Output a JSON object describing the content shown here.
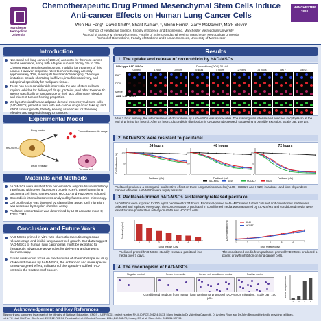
{
  "header": {
    "title_line1": "Chemotherapeutic Drug Primed Mesenchymal Stem Cells Induce",
    "title_line2": "Anti-cancer Effects on Human Lung Cancer Cells",
    "authors": "Wen-Hui Fang¹, David Smith², Shant Kumar¹, ³, Glenn Ferris¹, Garry McDowell¹, Mark Slevin¹",
    "affiliation1": "¹School of Healthcare Science, Faculty of Science and Engineering, Manchester Metropolitan University",
    "affiliation2": "²School of Science & The Environment, Faculty of Science and Engineering, Manchester Metropolitan University",
    "affiliation3": "³School of Biomedicine, Faculty of Medicine and Human Sciences, University of Manchester",
    "logo_left": "Manchester Metropolitan University",
    "logo_right": "MANCHESTER 1824"
  },
  "sections": {
    "introduction": "Introduction",
    "results": "Results",
    "experimental_model": "Experimental Model",
    "materials": "Materials and Methods",
    "conclusion": "Conclusion and Future Work",
    "acknowledgement": "Acknowledgement and Key References"
  },
  "introduction": [
    "Non-small-cell lung cancer (NSCLC) accounts for the most cancer deaths worldwide, along with a 5-year survival of only 3% to 15%. Chemotherapy remains an important modality for treatment of this tumour. However, response rates to chemotherapy are only approximately 30%, making its treatment challenging. The major limitations include short drug half-lives, insufficient delivery, and suboptimal specificity for malignant tissue.",
    "There has been considerable interest in the use of stem cells as tropism vehicles for delivery of drugs, proteins, and other therapeutic agents specifically to tumours due to their lack of immune rejection and inherent tumour-homing properties.",
    "We hypothesised human adipose-derived mesenchymal stem cells (hAD-MSCs) primed in vitro with anti-cancer drugs could take up and inhibit tumour growth, thereby serving as vehicles for delivering effective and targeted therapy to tumours."
  ],
  "model": {
    "drug_intake": "Drug Intake",
    "chemo": "Chemotherapeutic drugs",
    "msc": "hAD-MSC",
    "drug_release": "Drug Release",
    "tumour": "Tumour cell"
  },
  "materials": [
    "hAD-MSCs were isolated from peri-umbilical adipose tissue and stably transfected with green fluorescent protein (GFP); three human lung carcinoma cell lines, namely A549, HCC827 and H520 were cultured.",
    "Doxorubicin internalisation was analysed by fluorescence microscopy.",
    "Cell proliferation was detected by Alamar blue assay. Cell migration was assessed by Boyden chamber assay.",
    "Paclitaxel concentration was determined by UHD accurate-mass Q-TOF LC/MS."
  ],
  "conclusion": [
    "hAD-MSCs primed in vitro with chemotherapeutic drugs could release drugs and inhibit lung cancer cell growth. Our data suggest hAD-MSCs to human lung carcinomas might be exploited to therapeutic advantage as vehicles for delivering and targeting chemotherapy.",
    "Future work would focus on mechanisms of chemotherapeutic drug intake and release by hAD-MSCs, the enhanced and more specific tumour-targeted effect, utilisation of therapeutic-modified hAD-MSCs in the treatment of cancer."
  ],
  "acknowledgement": [
    "This work was supported by a grant of the Ministry of National Education, CNCS – UEFISCDI, project number PN-II-ID-PCE-2012-4-0133. Many thanks to Dr Valentina Caserotti, Dr Andrew Ryan and Dr John Berglund for kindly providing cell lines.",
    "Lohit TC et al. Mol Ther Clin Oncol. 2013;12:763-74; Pessina A et al. J Control Release. 2014;142:282-70; Kwang ES et al. Stem Cells. 2013;31:337-96."
  ],
  "result1": {
    "heading": "1. The uptake and release of doxorubicin by hAD-MSCs",
    "wildtype": "Wild type hAD-MSCs",
    "gfp": "GFP-hAD-MSCs",
    "dox_label": "Doxorubicin (DOX) 30 µM",
    "timepoints": [
      "Control",
      "1 hour",
      "2 hours",
      "4 hours",
      "8 hours",
      "12 hours",
      "24 hours",
      "Day 7",
      "Day 21"
    ],
    "rows": [
      "DAPI",
      "DOX",
      "Merge"
    ],
    "caption": "After 1 hour priming, the internalisation of doxorubicin by hAD-MSCs was appreciable. The staining was intense and enriched in cytoplasm at the end of priming (24 hours). After 24 hours, doxorubicin distribution in cytoplasm decreased, suggesting a possible excretion. Scale bar: 100 µm."
  },
  "result2": {
    "heading": "2. hAD-MSCs were resistant to paclitaxel",
    "panels": [
      "24 hours",
      "48 hours",
      "72 hours"
    ],
    "ylabel": "Cell Proliferation (%)",
    "xlabel": "Paclitaxel (nM)",
    "legend": [
      "hAD-MSC",
      "A549",
      "HCC827",
      "H520"
    ],
    "caption": "Paclitaxel produced a strong anti-proliferative effect on three lung carcinoma cells (A549, HCC827 and H520) in a dose- and time-dependent manner whereas hAD-MSCs were highly resistant."
  },
  "result3": {
    "heading": "3. Paclitaxel-primed hAD-MSCs sustainedly released paclitaxel",
    "text": "hAD-MSCs were exposed to 100 µg/ml paclitaxel for 24 hours. Paclitaxel-primed hAD-MSCs were further cultured and conditioned media were collected and replaced every day. The concentration of paclitaxel in conditioned media was measured by LC-MS/MS and conditioned media were tested for anti-proliferative activity on A549 and HCC827 cells.",
    "bar_ylabel": "Paclitaxel (ng/ml)",
    "bar_xlabel": "Drug release (Day)",
    "line_ylabel": "Cell Proliferation (%)",
    "line_xlabel": "Drug release (Day)",
    "legend": [
      "A549",
      "HCC827"
    ],
    "note_left": "Paclitaxel-primed hAD-MSCs steadily released paclitaxel into media over 7 days.",
    "note_right": "The conditioned media from paclitaxel primed hAD-MSCs produced a potent growth inhibition on lung cancer cells."
  },
  "result4": {
    "heading": "4. The oncotropism of hAD-MSCs",
    "labels": [
      "Negative control",
      "Serum free media",
      "Cancer cell conditioned media",
      "Positive control"
    ],
    "caption": "Conditioned medium from human lung carcinoma promoted hAD-MSCs migration. Scale bar: 100 µm.",
    "ylabel": "Number of Migrated Cells"
  },
  "colors": {
    "title": "#1b2f6b",
    "section": "#2f4a8c",
    "doxorubicin": "#e0242d",
    "dapi": "#2a44d8",
    "gfp": "#2fc83a"
  },
  "chart_data": [
    {
      "type": "line",
      "title": "24 hours",
      "xlabel": "Paclitaxel (nM)",
      "ylabel": "Cell Proliferation (%)",
      "ylim": [
        0,
        120
      ],
      "x": [
        0,
        1,
        2,
        3,
        4,
        5,
        6,
        7
      ],
      "series": [
        {
          "name": "hAD-MSC",
          "values": [
            100,
            99,
            98,
            97,
            96,
            95,
            94,
            92
          ]
        },
        {
          "name": "A549",
          "values": [
            100,
            98,
            95,
            88,
            80,
            72,
            65,
            60
          ]
        },
        {
          "name": "HCC827",
          "values": [
            100,
            96,
            90,
            80,
            70,
            62,
            56,
            52
          ]
        },
        {
          "name": "H520",
          "values": [
            100,
            97,
            92,
            84,
            76,
            68,
            60,
            55
          ]
        }
      ]
    },
    {
      "type": "line",
      "title": "48 hours",
      "xlabel": "Paclitaxel (nM)",
      "ylabel": "Cell Proliferation (%)",
      "ylim": [
        0,
        120
      ],
      "x": [
        0,
        1,
        2,
        3,
        4,
        5,
        6,
        7
      ],
      "series": [
        {
          "name": "hAD-MSC",
          "values": [
            100,
            99,
            97,
            96,
            95,
            93,
            92,
            90
          ]
        },
        {
          "name": "A549",
          "values": [
            100,
            92,
            80,
            60,
            45,
            35,
            30,
            28
          ]
        },
        {
          "name": "HCC827",
          "values": [
            100,
            90,
            75,
            55,
            40,
            30,
            25,
            22
          ]
        },
        {
          "name": "H520",
          "values": [
            100,
            94,
            82,
            65,
            50,
            40,
            34,
            30
          ]
        }
      ]
    },
    {
      "type": "line",
      "title": "72 hours",
      "xlabel": "Paclitaxel (nM)",
      "ylabel": "Cell Proliferation (%)",
      "ylim": [
        0,
        120
      ],
      "x": [
        0,
        1,
        2,
        3,
        4,
        5,
        6,
        7
      ],
      "series": [
        {
          "name": "hAD-MSC",
          "values": [
            100,
            98,
            96,
            95,
            93,
            92,
            90,
            88
          ]
        },
        {
          "name": "A549",
          "values": [
            100,
            85,
            60,
            35,
            20,
            12,
            10,
            8
          ]
        },
        {
          "name": "HCC827",
          "values": [
            100,
            80,
            50,
            25,
            12,
            8,
            6,
            5
          ]
        },
        {
          "name": "H520",
          "values": [
            100,
            88,
            65,
            40,
            22,
            15,
            12,
            10
          ]
        }
      ]
    },
    {
      "type": "bar",
      "xlabel": "Drug release (Day)",
      "ylabel": "Paclitaxel (ng/ml)",
      "categories": [
        "1",
        "2",
        "3",
        "4",
        "5",
        "6",
        "7"
      ],
      "values": [
        320,
        250,
        190,
        150,
        120,
        100,
        80
      ],
      "ylim": [
        0,
        400
      ]
    },
    {
      "type": "line",
      "xlabel": "Drug release (Day)",
      "ylabel": "Cell Proliferation (%)",
      "ylim": [
        0,
        120
      ],
      "x": [
        1,
        2,
        3,
        4,
        5,
        6,
        7
      ],
      "series": [
        {
          "name": "A549",
          "values": [
            10,
            14,
            20,
            30,
            40,
            52,
            62
          ]
        },
        {
          "name": "HCC827",
          "values": [
            8,
            12,
            18,
            26,
            36,
            46,
            56
          ]
        }
      ]
    },
    {
      "type": "bar",
      "ylabel": "Number of Migrated Cells",
      "categories": [
        "1",
        "2",
        "3",
        "4"
      ],
      "values": [
        10,
        25,
        120,
        140
      ],
      "ylim": [
        0,
        160
      ]
    }
  ]
}
